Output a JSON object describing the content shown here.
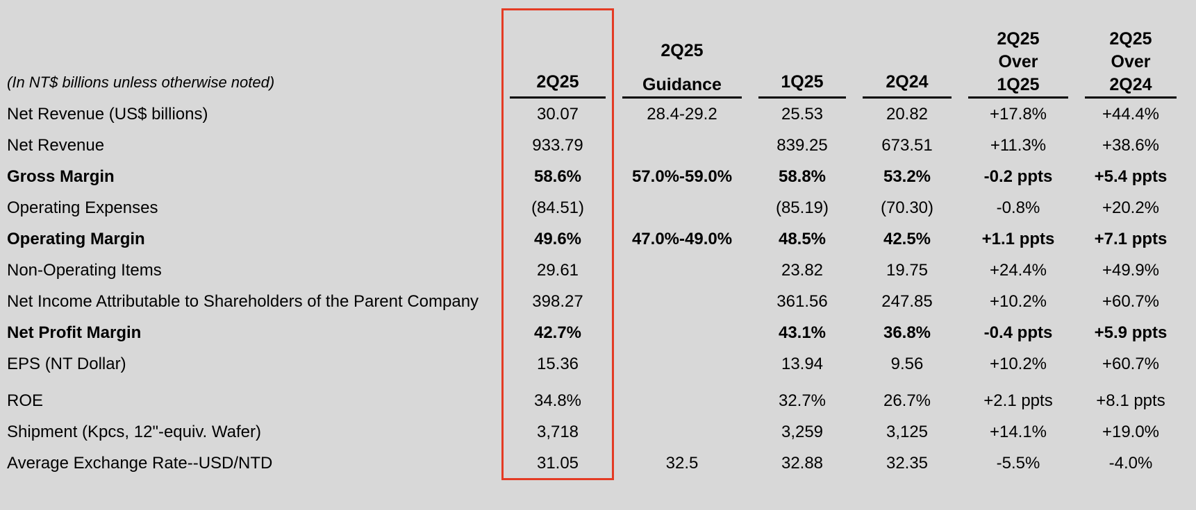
{
  "page": {
    "background_color": "#d8d8d8",
    "text_color": "#000000",
    "highlight_box_color": "#e43b24"
  },
  "table": {
    "unit_note": "(In NT$ billions unless otherwise noted)",
    "columns": [
      {
        "key": "2q25",
        "lines": [
          "2Q25"
        ],
        "highlighted": true
      },
      {
        "key": "2q25-guidance",
        "lines": [
          "2Q25",
          "Guidance"
        ],
        "highlighted": false
      },
      {
        "key": "1q25",
        "lines": [
          "1Q25"
        ],
        "highlighted": false
      },
      {
        "key": "2q24",
        "lines": [
          "2Q24"
        ],
        "highlighted": false
      },
      {
        "key": "2q25-over-1q25",
        "lines": [
          "2Q25",
          "Over",
          "1Q25"
        ],
        "highlighted": false
      },
      {
        "key": "2q25-over-2q24",
        "lines": [
          "2Q25",
          "Over",
          "2Q24"
        ],
        "highlighted": false
      }
    ],
    "rows": [
      {
        "label": "Net Revenue (US$ billions)",
        "bold": false,
        "gap_before": false,
        "values": [
          "30.07",
          "28.4-29.2",
          "25.53",
          "20.82",
          "+17.8%",
          "+44.4%"
        ]
      },
      {
        "label": "Net Revenue",
        "bold": false,
        "gap_before": false,
        "values": [
          "933.79",
          "",
          "839.25",
          "673.51",
          "+11.3%",
          "+38.6%"
        ]
      },
      {
        "label": "Gross Margin",
        "bold": true,
        "gap_before": false,
        "values": [
          "58.6%",
          "57.0%-59.0%",
          "58.8%",
          "53.2%",
          "-0.2 ppts",
          "+5.4 ppts"
        ]
      },
      {
        "label": "Operating Expenses",
        "bold": false,
        "gap_before": false,
        "values": [
          "(84.51)",
          "",
          "(85.19)",
          "(70.30)",
          "-0.8%",
          "+20.2%"
        ]
      },
      {
        "label": "Operating Margin",
        "bold": true,
        "gap_before": false,
        "values": [
          "49.6%",
          "47.0%-49.0%",
          "48.5%",
          "42.5%",
          "+1.1 ppts",
          "+7.1 ppts"
        ]
      },
      {
        "label": "Non-Operating Items",
        "bold": false,
        "gap_before": false,
        "values": [
          "29.61",
          "",
          "23.82",
          "19.75",
          "+24.4%",
          "+49.9%"
        ]
      },
      {
        "label": "Net Income Attributable to Shareholders of the Parent Company",
        "bold": false,
        "gap_before": false,
        "values": [
          "398.27",
          "",
          "361.56",
          "247.85",
          "+10.2%",
          "+60.7%"
        ]
      },
      {
        "label": "Net Profit Margin",
        "bold": true,
        "gap_before": false,
        "values": [
          "42.7%",
          "",
          "43.1%",
          "36.8%",
          "-0.4 ppts",
          "+5.9 ppts"
        ]
      },
      {
        "label": "EPS (NT Dollar)",
        "bold": false,
        "gap_before": false,
        "values": [
          "15.36",
          "",
          "13.94",
          "9.56",
          "+10.2%",
          "+60.7%"
        ]
      },
      {
        "label": "ROE",
        "bold": false,
        "gap_before": true,
        "values": [
          "34.8%",
          "",
          "32.7%",
          "26.7%",
          "+2.1 ppts",
          "+8.1 ppts"
        ]
      },
      {
        "label": "Shipment (Kpcs, 12\"-equiv. Wafer)",
        "bold": false,
        "gap_before": false,
        "values": [
          "3,718",
          "",
          "3,259",
          "3,125",
          "+14.1%",
          "+19.0%"
        ]
      },
      {
        "label": "Average Exchange Rate--USD/NTD",
        "bold": false,
        "gap_before": false,
        "values": [
          "31.05",
          "32.5",
          "32.88",
          "32.35",
          "-5.5%",
          "-4.0%"
        ]
      }
    ]
  }
}
